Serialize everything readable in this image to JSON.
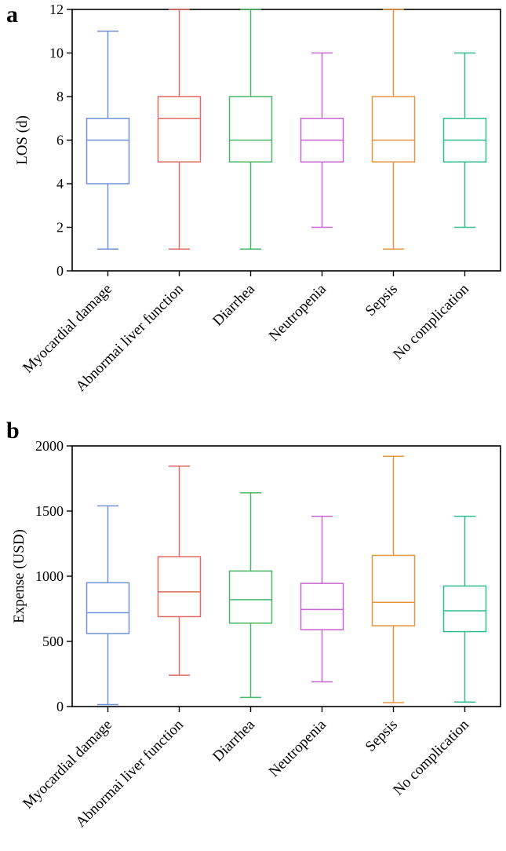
{
  "figure": {
    "background": "#ffffff",
    "panel_count": 2
  },
  "chart_data": [
    {
      "type": "boxplot",
      "panel_label": "a",
      "title": "",
      "xlabel": "",
      "ylabel": "LOS (d)",
      "ylim": [
        0,
        12
      ],
      "yticks": [
        0,
        2,
        4,
        6,
        8,
        10,
        12
      ],
      "grid": false,
      "legend": "none",
      "categories": [
        "Myocardial damage",
        "Abnormai liver function",
        "Diarrhea",
        "Neutropenia",
        "Sepsis",
        "No complication"
      ],
      "series": [
        {
          "name": "Myocardial damage",
          "color": "#6e92d8",
          "whisker_low": 1,
          "q1": 4,
          "median": 6,
          "q3": 7,
          "whisker_high": 11
        },
        {
          "name": "Abnormai liver function",
          "color": "#e16a62",
          "whisker_low": 1,
          "q1": 5,
          "median": 7,
          "q3": 8,
          "whisker_high": 12
        },
        {
          "name": "Diarrhea",
          "color": "#48b768",
          "whisker_low": 1,
          "q1": 5,
          "median": 6,
          "q3": 8,
          "whisker_high": 12
        },
        {
          "name": "Neutropenia",
          "color": "#c863d2",
          "whisker_low": 2,
          "q1": 5,
          "median": 6,
          "q3": 7,
          "whisker_high": 10
        },
        {
          "name": "Sepsis",
          "color": "#e79440",
          "whisker_low": 1,
          "q1": 5,
          "median": 6,
          "q3": 8,
          "whisker_high": 12
        },
        {
          "name": "No complication",
          "color": "#2fbd8b",
          "whisker_low": 2,
          "q1": 5,
          "median": 6,
          "q3": 7,
          "whisker_high": 10
        }
      ]
    },
    {
      "type": "boxplot",
      "panel_label": "b",
      "title": "",
      "xlabel": "",
      "ylabel": "Expense (USD)",
      "ylim": [
        0,
        2000
      ],
      "yticks": [
        0,
        500,
        1000,
        1500,
        2000
      ],
      "grid": false,
      "legend": "none",
      "categories": [
        "Myocardial damage",
        "Abnormai liver function",
        "Diarrhea",
        "Neutropenia",
        "Sepsis",
        "No complication"
      ],
      "series": [
        {
          "name": "Myocardial damage",
          "color": "#6e92d8",
          "whisker_low": 15,
          "q1": 560,
          "median": 720,
          "q3": 950,
          "whisker_high": 1540
        },
        {
          "name": "Abnormai liver function",
          "color": "#e16a62",
          "whisker_low": 240,
          "q1": 690,
          "median": 880,
          "q3": 1150,
          "whisker_high": 1845
        },
        {
          "name": "Diarrhea",
          "color": "#48b768",
          "whisker_low": 70,
          "q1": 640,
          "median": 820,
          "q3": 1040,
          "whisker_high": 1640
        },
        {
          "name": "Neutropenia",
          "color": "#c863d2",
          "whisker_low": 190,
          "q1": 590,
          "median": 745,
          "q3": 945,
          "whisker_high": 1460
        },
        {
          "name": "Sepsis",
          "color": "#e79440",
          "whisker_low": 30,
          "q1": 620,
          "median": 800,
          "q3": 1160,
          "whisker_high": 1920
        },
        {
          "name": "No complication",
          "color": "#2fbd8b",
          "whisker_low": 35,
          "q1": 575,
          "median": 735,
          "q3": 925,
          "whisker_high": 1460
        }
      ]
    }
  ]
}
